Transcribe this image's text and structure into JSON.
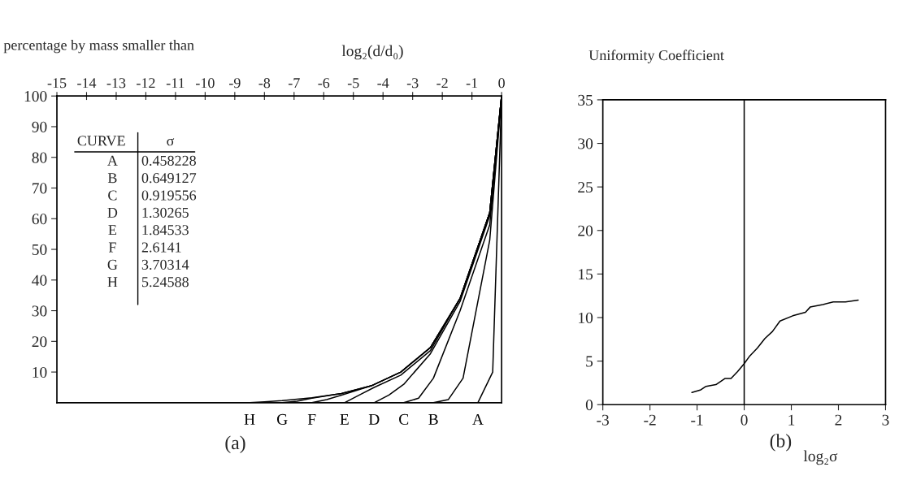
{
  "chart_data": [
    {
      "type": "line",
      "xlabel": "log₂(d/d₀)",
      "ylabel": "percentage by mass smaller than",
      "xlim": [
        -15,
        0
      ],
      "xticks": [
        -15,
        -14,
        -13,
        -12,
        -11,
        -10,
        -9,
        -8,
        -7,
        -6,
        -5,
        -4,
        -3,
        -2,
        -1,
        0
      ],
      "ylim": [
        0,
        100
      ],
      "yticks": [
        10,
        20,
        30,
        40,
        50,
        60,
        70,
        80,
        90,
        100
      ],
      "grid": false,
      "legend": false,
      "marker": "none",
      "line_style": "solid",
      "series": [
        {
          "name": "A",
          "color": "#000000",
          "x": [
            0,
            -0.3,
            -0.8
          ],
          "values": [
            100,
            10,
            0
          ]
        },
        {
          "name": "B",
          "color": "#000000",
          "x": [
            0,
            -0.4,
            -1.3,
            -1.8,
            -2.3
          ],
          "values": [
            100,
            53,
            8,
            1,
            0
          ]
        },
        {
          "name": "C",
          "color": "#000000",
          "x": [
            0,
            -0.4,
            -1.4,
            -2.3,
            -2.8,
            -3.3
          ],
          "values": [
            100,
            58,
            30,
            8,
            1.5,
            0
          ]
        },
        {
          "name": "D",
          "color": "#000000",
          "x": [
            0,
            -0.4,
            -1.4,
            -2.4,
            -3.3,
            -3.8,
            -4.3
          ],
          "values": [
            100,
            61,
            33,
            16,
            6,
            2.5,
            0
          ]
        },
        {
          "name": "E",
          "color": "#000000",
          "x": [
            0,
            -0.4,
            -1.4,
            -2.4,
            -3.4,
            -4.3,
            -4.8,
            -5.3
          ],
          "values": [
            100,
            62,
            34,
            17,
            9,
            5,
            2.5,
            0
          ]
        },
        {
          "name": "F",
          "color": "#000000",
          "x": [
            0,
            -0.4,
            -1.4,
            -2.4,
            -3.4,
            -4.4,
            -5.4,
            -5.9,
            -6.4
          ],
          "values": [
            100,
            62,
            34,
            18,
            10,
            5.5,
            2.5,
            1,
            0
          ]
        },
        {
          "name": "G",
          "color": "#000000",
          "x": [
            0,
            -0.4,
            -1.4,
            -2.4,
            -3.4,
            -4.4,
            -5.4,
            -6.4,
            -6.9,
            -7.4
          ],
          "values": [
            100,
            62,
            34,
            18,
            10,
            5.5,
            3,
            1.5,
            0.5,
            0
          ]
        },
        {
          "name": "H",
          "color": "#000000",
          "x": [
            0,
            -0.4,
            -1.4,
            -2.4,
            -3.4,
            -4.4,
            -5.4,
            -6.4,
            -7.4,
            -8.0,
            -8.5
          ],
          "values": [
            100,
            62,
            34,
            18,
            10,
            5.5,
            3,
            1.6,
            0.7,
            0.3,
            0
          ]
        }
      ],
      "annotations": [
        "CURVE",
        "σ",
        "0.458228",
        "0.649127",
        "0.919556",
        "1.30265",
        "1.84533",
        "2.6141",
        "3.70314",
        "5.24588",
        "(a)"
      ]
    },
    {
      "type": "line",
      "xlabel": "log₂σ",
      "ylabel": "Uniformity Coefficient",
      "xlim": [
        -3,
        3
      ],
      "xticks": [
        -3,
        -2,
        -1,
        0,
        1,
        2,
        3
      ],
      "ylim": [
        0,
        35
      ],
      "yticks": [
        0,
        5,
        10,
        15,
        20,
        25,
        30,
        35
      ],
      "grid": false,
      "legend": false,
      "marker": "none",
      "line_style": "solid",
      "series": [
        {
          "color": "#000000",
          "x": [
            -1.11,
            -0.92,
            -0.81,
            -0.6,
            -0.41,
            -0.28,
            -0.14,
            0.0,
            0.12,
            0.28,
            0.44,
            0.6,
            0.76,
            1.03,
            1.3,
            1.4,
            1.67,
            1.89,
            2.15,
            2.42
          ],
          "values": [
            1.4,
            1.7,
            2.1,
            2.3,
            3.0,
            3.0,
            3.8,
            4.7,
            5.6,
            6.5,
            7.6,
            8.4,
            9.6,
            10.2,
            10.6,
            11.2,
            11.5,
            11.8,
            11.8,
            12.0
          ]
        }
      ],
      "ref_lines": [
        {
          "axis": "x",
          "value": 0,
          "color": "#000000",
          "line_style": "solid"
        }
      ],
      "annotations": [
        "(b)"
      ]
    }
  ]
}
